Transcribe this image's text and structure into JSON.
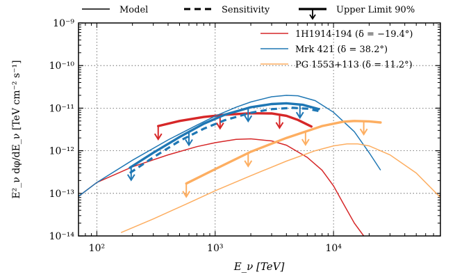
{
  "chart_data": {
    "type": "line",
    "xlabel": "E_ν [TeV]",
    "ylabel": "E²_ν dφ/dE_ν  [TeV cm⁻² s⁻¹]",
    "x_scale": "log",
    "y_scale": "log",
    "xlim": [
      70,
      80000
    ],
    "ylim": [
      1e-14,
      1e-09
    ],
    "x_ticks": [
      {
        "value": 100,
        "label": "10²"
      },
      {
        "value": 1000,
        "label": "10³"
      },
      {
        "value": 10000,
        "label": "10⁴"
      }
    ],
    "y_ticks": [
      {
        "value": 1e-09,
        "label": "10⁻⁹"
      },
      {
        "value": 1e-10,
        "label": "10⁻¹⁰"
      },
      {
        "value": 1e-11,
        "label": "10⁻¹¹"
      },
      {
        "value": 1e-12,
        "label": "10⁻¹²"
      },
      {
        "value": 1e-13,
        "label": "10⁻¹³"
      },
      {
        "value": 1e-14,
        "label": "10⁻¹⁴"
      }
    ],
    "grid": true,
    "style_legend": [
      {
        "label": "Model",
        "style": "solid"
      },
      {
        "label": "Sensitivity",
        "style": "dashed"
      },
      {
        "label": "Upper Limit 90%",
        "style": "upper-limit"
      }
    ],
    "legend_position": "top-right",
    "series": [
      {
        "name": "1H1914-194 (δ = −19.4°)",
        "color": "#d62728",
        "model": {
          "x": [
            70,
            100,
            200,
            400,
            700,
            1000,
            1500,
            2000,
            3000,
            4000,
            6000,
            8000,
            10000,
            12000,
            15000,
            18000
          ],
          "y": [
            8.5e-14,
            1.8e-13,
            4.2e-13,
            8e-13,
            1.25e-12,
            1.55e-12,
            1.85e-12,
            1.9e-12,
            1.7e-12,
            1.35e-12,
            7e-13,
            3.5e-13,
            1.5e-13,
            6e-14,
            2e-14,
            1e-14
          ]
        },
        "sensitivity": null,
        "upper_limit": {
          "x": [
            330,
            500,
            800,
            1200,
            2000,
            3000,
            4000,
            5000,
            6500
          ],
          "y": [
            3.8e-12,
            5e-12,
            6.2e-12,
            7e-12,
            7.6e-12,
            7.5e-12,
            6.6e-12,
            5.3e-12,
            3.7e-12
          ],
          "arrows_x": [
            330,
            1100,
            3500
          ]
        }
      },
      {
        "name": "Mrk 421 (δ = 38.2°)",
        "color": "#1f77b4",
        "model": {
          "x": [
            70,
            100,
            200,
            400,
            700,
            1000,
            1500,
            2000,
            3000,
            4000,
            5000,
            7000,
            10000,
            15000,
            20000,
            25000
          ],
          "y": [
            8.5e-14,
            1.8e-13,
            6e-13,
            1.8e-12,
            4e-12,
            6.5e-12,
            1.05e-11,
            1.4e-11,
            1.85e-11,
            2e-11,
            1.95e-11,
            1.5e-11,
            8e-12,
            2.8e-12,
            9e-13,
            3.5e-13
          ]
        },
        "sensitivity": {
          "x": [
            190,
            300,
            500,
            800,
            1200,
            2000,
            3000,
            4500,
            6000,
            8000
          ],
          "y": [
            3e-13,
            7e-13,
            1.7e-12,
            3.3e-12,
            5.2e-12,
            7.8e-12,
            9.5e-12,
            1.02e-11,
            9.7e-12,
            8.3e-12
          ]
        },
        "upper_limit": {
          "x": [
            190,
            300,
            500,
            800,
            1200,
            2000,
            3000,
            4000,
            5500,
            7500
          ],
          "y": [
            4e-13,
            9e-13,
            2.1e-12,
            4.3e-12,
            7e-12,
            1.05e-11,
            1.25e-11,
            1.3e-11,
            1.2e-11,
            9.5e-12
          ],
          "arrows_x": [
            195,
            600,
            1900,
            5200
          ]
        }
      },
      {
        "name": "PG 1553+113 (δ = 11.2°)",
        "color": "#fdae61",
        "model": {
          "x": [
            160,
            300,
            600,
            1000,
            2000,
            4000,
            7000,
            10000,
            13000,
            16000,
            20000,
            30000,
            50000,
            80000
          ],
          "y": [
            1.2e-14,
            2.5e-14,
            6e-14,
            1.15e-13,
            2.6e-13,
            5.7e-13,
            1e-12,
            1.3e-12,
            1.45e-12,
            1.45e-12,
            1.3e-12,
            8e-13,
            3e-13,
            8e-14
          ]
        },
        "sensitivity": null,
        "upper_limit": {
          "x": [
            570,
            1000,
            2000,
            4000,
            8000,
            12000,
            15000,
            20000,
            25000
          ],
          "y": [
            1.7e-13,
            3.7e-13,
            9.5e-13,
            2e-12,
            3.8e-12,
            4.8e-12,
            5e-12,
            4.9e-12,
            4.6e-12
          ],
          "arrows_x": [
            570,
            1900,
            5800,
            18000
          ]
        }
      }
    ]
  }
}
